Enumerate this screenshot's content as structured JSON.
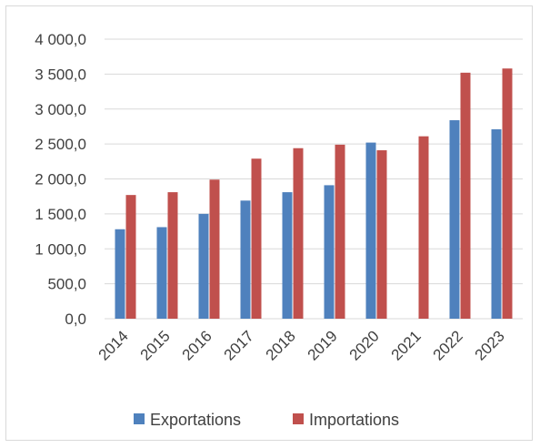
{
  "chart_data": {
    "type": "bar",
    "categories": [
      "2014",
      "2015",
      "2016",
      "2017",
      "2018",
      "2019",
      "2020",
      "2021",
      "2022",
      "2023"
    ],
    "series": [
      {
        "name": "Exportations",
        "color": "#4f81bd",
        "values": [
          1280,
          1310,
          1500,
          1690,
          1810,
          1910,
          2520,
          null,
          2840,
          2710
        ]
      },
      {
        "name": "Importations",
        "color": "#c0504d",
        "values": [
          1770,
          1810,
          1990,
          2290,
          2440,
          2490,
          2410,
          2610,
          3520,
          3580
        ]
      }
    ],
    "yticks": [
      "0,0",
      "500,0",
      "1 000,0",
      "1 500,0",
      "2 000,0",
      "2 500,0",
      "3 000,0",
      "3 500,0",
      "4 000,0"
    ],
    "ylim": [
      0,
      4000
    ],
    "grid": true,
    "legend_position": "bottom"
  }
}
